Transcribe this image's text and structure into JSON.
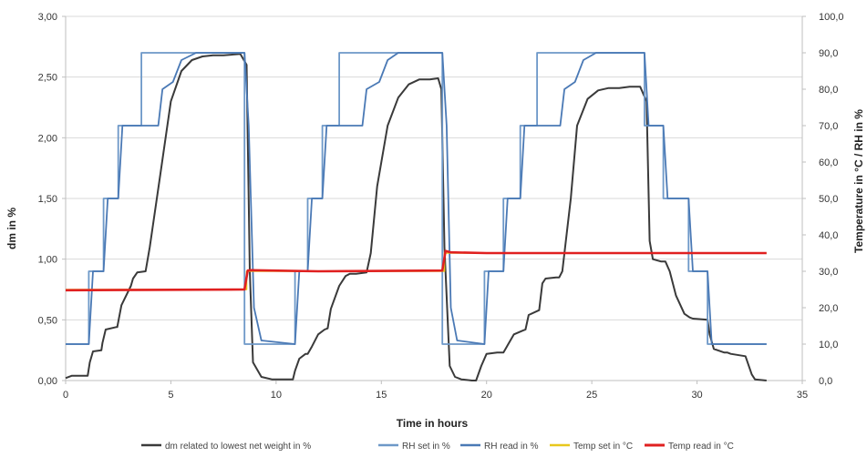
{
  "chart_data": {
    "type": "line",
    "xlabel": "Time in hours",
    "ylabel_left": "dm in %",
    "ylabel_right": "Temperature in °C / RH in %",
    "xlim": [
      0,
      35
    ],
    "ylim_left": [
      0,
      3
    ],
    "ylim_right": [
      0,
      100
    ],
    "x_ticks": [
      "0",
      "5",
      "10",
      "15",
      "20",
      "25",
      "30",
      "35"
    ],
    "y_left_ticks": [
      "0,00",
      "0,50",
      "1,00",
      "1,50",
      "2,00",
      "2,50",
      "3,00"
    ],
    "y_right_ticks": [
      "0,0",
      "10,0",
      "20,0",
      "30,0",
      "40,0",
      "50,0",
      "60,0",
      "70,0",
      "80,0",
      "90,0",
      "100,0"
    ],
    "grid": "horizontal",
    "legend_position": "bottom",
    "series": [
      {
        "name": "dm  related to lowest net weight in   %",
        "axis": "left",
        "color": "#3a3a3a",
        "x": [
          0,
          0.3,
          0.5,
          1.05,
          1.15,
          1.3,
          1.7,
          1.75,
          1.9,
          2.4,
          2.45,
          2.65,
          3.1,
          3.2,
          3.4,
          3.8,
          4.0,
          4.5,
          5.0,
          5.5,
          6.0,
          6.5,
          7.0,
          7.5,
          8.3,
          8.6,
          8.75,
          8.9,
          9.3,
          9.8,
          10.8,
          10.9,
          11.1,
          11.4,
          11.5,
          11.7,
          12.0,
          12.3,
          12.45,
          12.6,
          13.0,
          13.3,
          13.5,
          13.8,
          14.3,
          14.5,
          14.8,
          15.3,
          15.8,
          16.3,
          16.8,
          17.3,
          17.7,
          17.85,
          18.0,
          18.25,
          18.5,
          18.8,
          19.3,
          19.5,
          19.75,
          20.0,
          20.5,
          20.8,
          21.0,
          21.3,
          21.7,
          21.85,
          22.0,
          22.5,
          22.65,
          22.8,
          23.3,
          23.45,
          23.6,
          24.0,
          24.3,
          24.8,
          25.3,
          25.8,
          26.3,
          26.8,
          27.3,
          27.6,
          27.75,
          27.9,
          28.3,
          28.5,
          28.7,
          29.0,
          29.4,
          29.65,
          29.8,
          30.5,
          30.6,
          30.8,
          31.3,
          31.45,
          31.6,
          32.3,
          32.6,
          32.75,
          33.3
        ],
        "values": [
          0.02,
          0.04,
          0.04,
          0.04,
          0.15,
          0.24,
          0.25,
          0.31,
          0.42,
          0.44,
          0.44,
          0.62,
          0.78,
          0.84,
          0.89,
          0.9,
          1.1,
          1.7,
          2.3,
          2.55,
          2.64,
          2.67,
          2.68,
          2.68,
          2.69,
          2.6,
          0.9,
          0.15,
          0.03,
          0.01,
          0.01,
          0.08,
          0.18,
          0.22,
          0.22,
          0.28,
          0.38,
          0.42,
          0.43,
          0.59,
          0.78,
          0.86,
          0.88,
          0.88,
          0.89,
          1.05,
          1.6,
          2.1,
          2.33,
          2.44,
          2.48,
          2.48,
          2.49,
          2.4,
          1.1,
          0.12,
          0.03,
          0.01,
          0.0,
          0.0,
          0.12,
          0.22,
          0.23,
          0.23,
          0.29,
          0.38,
          0.41,
          0.42,
          0.54,
          0.58,
          0.8,
          0.84,
          0.85,
          0.85,
          0.9,
          1.5,
          2.1,
          2.32,
          2.39,
          2.41,
          2.41,
          2.42,
          2.42,
          2.3,
          1.15,
          1.0,
          0.98,
          0.98,
          0.9,
          0.7,
          0.55,
          0.52,
          0.51,
          0.5,
          0.38,
          0.26,
          0.23,
          0.23,
          0.22,
          0.2,
          0.05,
          0.01,
          0.0
        ]
      },
      {
        "name": "RH set in %",
        "axis": "right",
        "color": "#6d98c8",
        "x": [
          0,
          1.1,
          1.1,
          1.8,
          1.8,
          2.5,
          2.5,
          3.6,
          3.6,
          4.4,
          4.4,
          5.1,
          5.1,
          8.5,
          8.5,
          10.9,
          10.9,
          11.5,
          11.5,
          12.2,
          12.2,
          13.0,
          13.0,
          14.1,
          14.1,
          14.9,
          14.9,
          17.9,
          17.9,
          19.9,
          19.9,
          20.8,
          20.8,
          21.6,
          21.6,
          22.4,
          22.4,
          23.5,
          23.5,
          24.2,
          24.2,
          27.5,
          27.5,
          28.4,
          28.4,
          29.6,
          29.6,
          30.5,
          30.5,
          31.5,
          31.5,
          32.6,
          32.6,
          33.3
        ],
        "values": [
          10,
          10,
          30,
          30,
          50,
          50,
          70,
          70,
          90,
          90,
          90,
          90,
          90,
          90,
          10,
          10,
          30,
          30,
          50,
          50,
          70,
          70,
          90,
          90,
          90,
          90,
          90,
          90,
          10,
          10,
          30,
          30,
          50,
          50,
          70,
          70,
          90,
          90,
          90,
          90,
          90,
          90,
          70,
          70,
          50,
          50,
          30,
          30,
          10,
          10,
          10,
          10,
          10,
          10
        ]
      },
      {
        "name": "RH read in %",
        "axis": "right",
        "color": "#4a79b5",
        "x": [
          0,
          1.1,
          1.3,
          1.8,
          2.0,
          2.5,
          2.7,
          3.6,
          3.8,
          4.4,
          4.6,
          5.1,
          5.5,
          6.2,
          8.5,
          8.7,
          8.95,
          9.3,
          10.9,
          11.1,
          11.5,
          11.7,
          12.2,
          12.4,
          13.0,
          13.2,
          14.1,
          14.3,
          14.9,
          15.3,
          15.8,
          17.9,
          18.1,
          18.3,
          18.6,
          19.9,
          20.1,
          20.8,
          21.0,
          21.6,
          21.8,
          22.4,
          22.6,
          23.5,
          23.7,
          24.2,
          24.6,
          25.2,
          27.5,
          27.7,
          28.4,
          28.6,
          29.6,
          29.8,
          30.5,
          30.7,
          31.5,
          31.7,
          32.6,
          32.8,
          33.3
        ],
        "values": [
          10,
          10,
          30,
          30,
          50,
          50,
          70,
          70,
          70,
          70,
          80,
          82,
          88,
          90,
          90,
          70,
          20,
          11,
          10,
          30,
          30,
          50,
          50,
          70,
          70,
          70,
          70,
          80,
          82,
          88,
          90,
          90,
          70,
          20,
          11,
          10,
          30,
          30,
          50,
          50,
          70,
          70,
          70,
          70,
          80,
          82,
          88,
          90,
          90,
          70,
          70,
          50,
          50,
          30,
          30,
          10,
          10,
          10,
          10,
          10,
          10
        ]
      },
      {
        "name": "Temp set in °C",
        "axis": "right",
        "color": "#e8c81c",
        "x": [
          0,
          8.6,
          8.6,
          18.0,
          18.0,
          33.3
        ],
        "values": [
          25,
          25,
          30,
          30,
          35,
          35
        ]
      },
      {
        "name": "Temp read in °C",
        "axis": "right",
        "color": "#e02020",
        "x": [
          0,
          4.0,
          8.5,
          8.65,
          8.8,
          12.0,
          17.9,
          18.05,
          18.3,
          20.0,
          33.3
        ],
        "values": [
          24.8,
          24.9,
          25.0,
          30.2,
          30.3,
          30.0,
          30.2,
          35.6,
          35.2,
          35.0,
          35.0
        ]
      }
    ]
  }
}
